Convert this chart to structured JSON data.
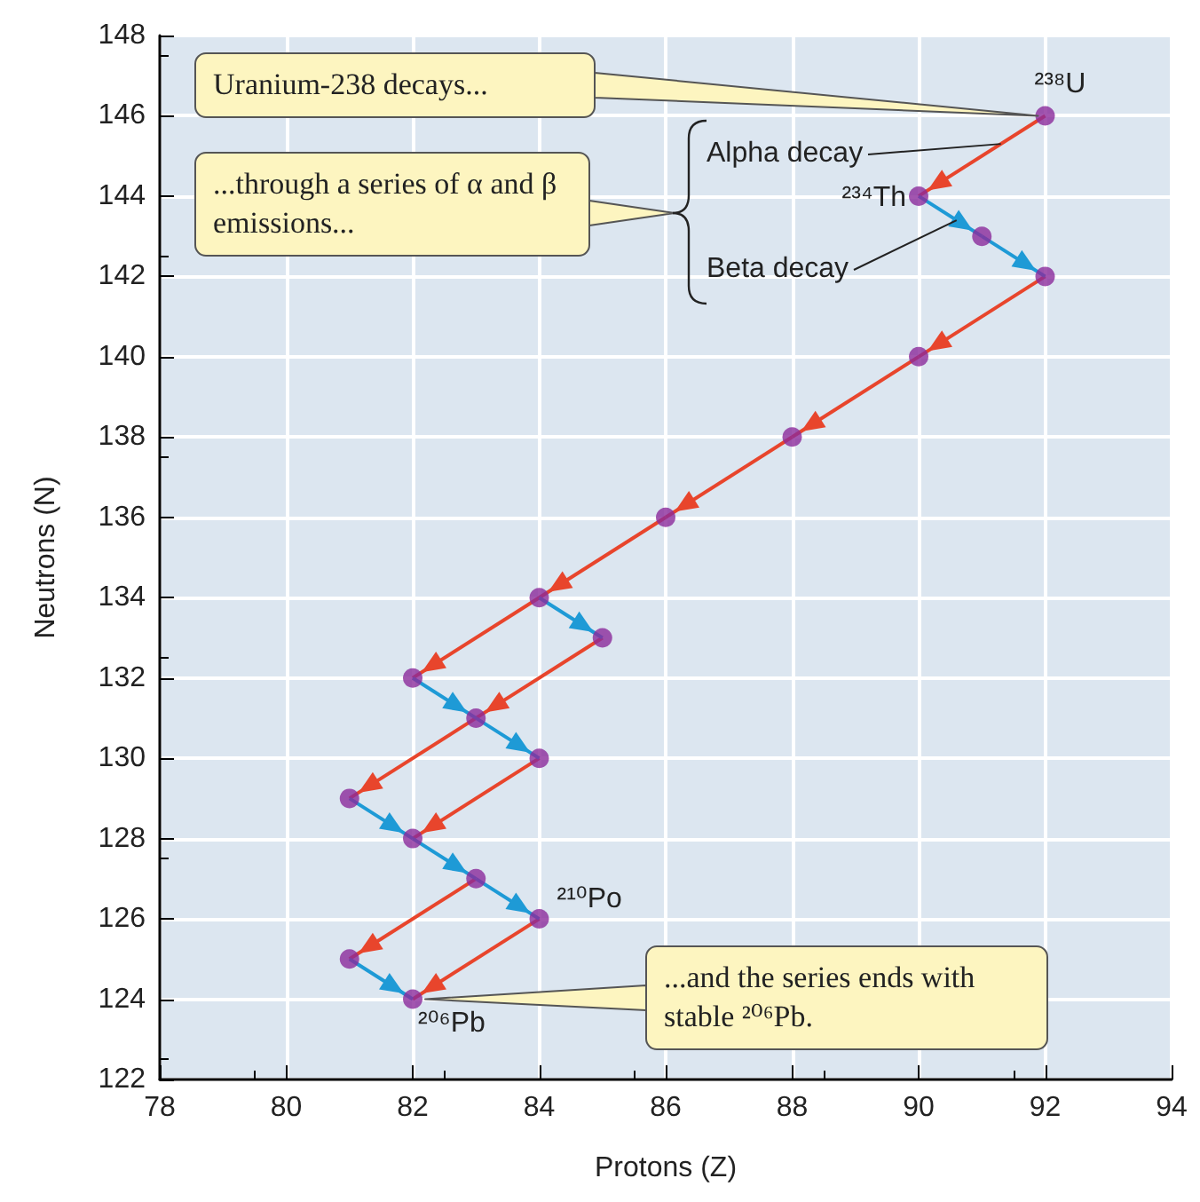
{
  "chart_data": {
    "type": "line",
    "xlabel": "Protons (Z)",
    "ylabel": "Neutrons (N)",
    "xlim": [
      78,
      94
    ],
    "xticks": [
      78,
      80,
      82,
      84,
      86,
      88,
      90,
      92,
      94
    ],
    "ylim": [
      122,
      148
    ],
    "yticks": [
      122,
      124,
      126,
      128,
      130,
      132,
      134,
      136,
      138,
      140,
      142,
      144,
      146,
      148
    ],
    "grid": true,
    "series": [
      {
        "color": "#e8452c",
        "x": [
          92,
          90
        ],
        "values": [
          146,
          144
        ]
      },
      {
        "color": "#e8452c",
        "x": [
          92,
          90
        ],
        "values": [
          142,
          140
        ]
      },
      {
        "color": "#e8452c",
        "x": [
          90,
          88
        ],
        "values": [
          140,
          138
        ]
      },
      {
        "color": "#e8452c",
        "x": [
          88,
          86
        ],
        "values": [
          138,
          136
        ]
      },
      {
        "color": "#e8452c",
        "x": [
          86,
          84
        ],
        "values": [
          136,
          134
        ]
      },
      {
        "color": "#e8452c",
        "x": [
          84,
          82
        ],
        "values": [
          134,
          132
        ]
      },
      {
        "color": "#e8452c",
        "x": [
          85,
          83
        ],
        "values": [
          133,
          131
        ]
      },
      {
        "color": "#e8452c",
        "x": [
          83,
          81
        ],
        "values": [
          131,
          129
        ]
      },
      {
        "color": "#e8452c",
        "x": [
          84,
          82
        ],
        "values": [
          130,
          128
        ]
      },
      {
        "color": "#e8452c",
        "x": [
          83,
          81
        ],
        "values": [
          127,
          125
        ]
      },
      {
        "color": "#e8452c",
        "x": [
          84,
          82
        ],
        "values": [
          126,
          124
        ]
      },
      {
        "color": "#1e9ad6",
        "x": [
          90,
          91
        ],
        "values": [
          144,
          143
        ]
      },
      {
        "color": "#1e9ad6",
        "x": [
          91,
          92
        ],
        "values": [
          143,
          142
        ]
      },
      {
        "color": "#1e9ad6",
        "x": [
          84,
          85
        ],
        "values": [
          134,
          133
        ]
      },
      {
        "color": "#1e9ad6",
        "x": [
          82,
          83
        ],
        "values": [
          132,
          131
        ]
      },
      {
        "color": "#1e9ad6",
        "x": [
          83,
          84
        ],
        "values": [
          131,
          130
        ]
      },
      {
        "color": "#1e9ad6",
        "x": [
          81,
          82
        ],
        "values": [
          129,
          128
        ]
      },
      {
        "color": "#1e9ad6",
        "x": [
          82,
          83
        ],
        "values": [
          128,
          127
        ]
      },
      {
        "color": "#1e9ad6",
        "x": [
          83,
          84
        ],
        "values": [
          127,
          126
        ]
      },
      {
        "color": "#1e9ad6",
        "x": [
          81,
          82
        ],
        "values": [
          125,
          124
        ]
      },
      {
        "type": "scatter",
        "color": "#8b2a9b",
        "marker": "circle",
        "x": [
          92,
          90,
          91,
          92,
          90,
          88,
          86,
          84,
          85,
          82,
          83,
          84,
          81,
          82,
          83,
          84,
          81,
          82
        ],
        "values": [
          146,
          144,
          143,
          142,
          140,
          138,
          136,
          134,
          133,
          132,
          131,
          130,
          129,
          128,
          127,
          126,
          125,
          124
        ]
      }
    ],
    "annotations": [
      "Uranium-238 decays...",
      "...through a series of α and β emissions...",
      {
        "text": "Alpha decay",
        "x": 91.3,
        "y": 145.3
      },
      {
        "text": "Beta decay",
        "x": 90.6,
        "y": 143.4
      },
      {
        "text": "²³⁸U",
        "x": 92,
        "y": 146
      },
      {
        "text": "²³⁴Th",
        "x": 90,
        "y": 144
      },
      {
        "text": "²¹⁰Po",
        "x": 84,
        "y": 126
      },
      {
        "text": "²⁰⁶Pb",
        "x": 82,
        "y": 124
      },
      {
        "text": "...and the series ends with stable ²⁰⁶Pb.",
        "x": 82,
        "y": 124
      }
    ]
  }
}
